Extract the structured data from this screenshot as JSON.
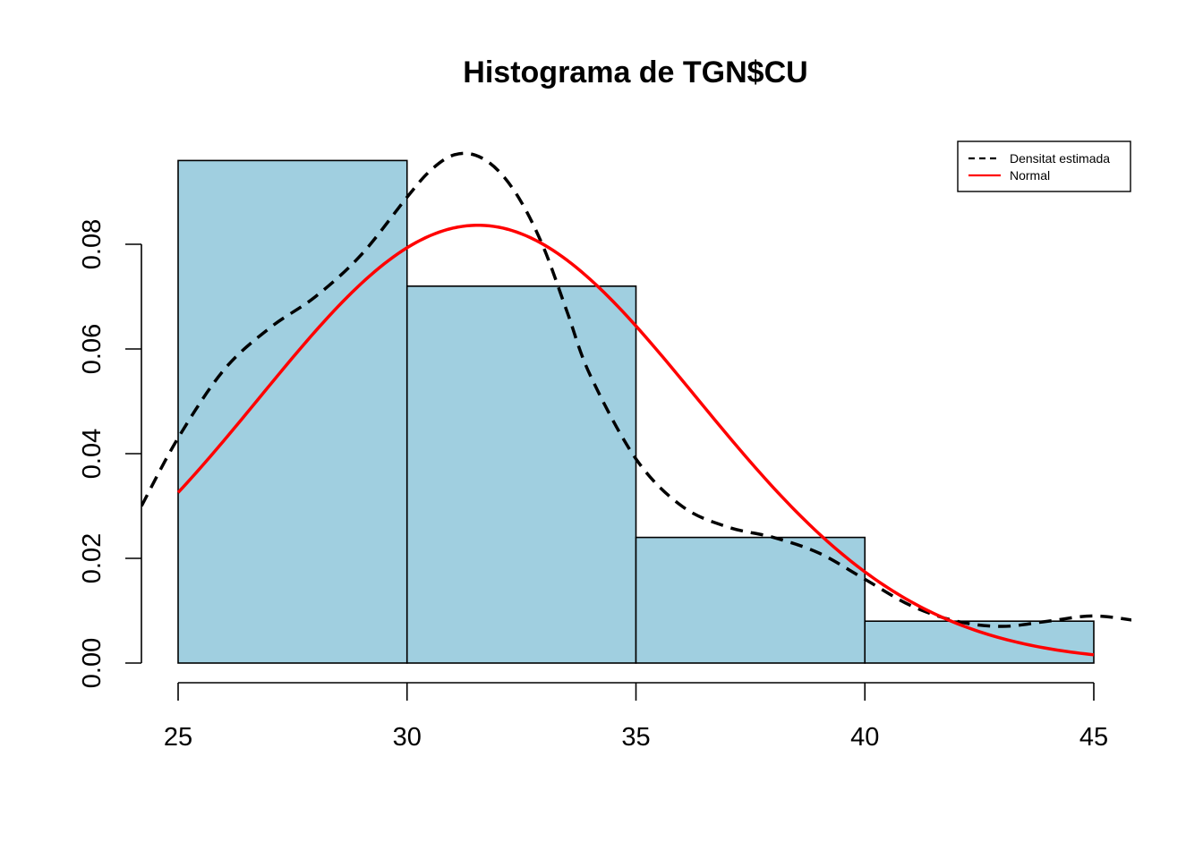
{
  "chart_data": {
    "type": "bar",
    "title": "Histograma de TGN$CU",
    "xlabel": "",
    "ylabel": "",
    "xlim": [
      24.2,
      46
    ],
    "ylim": [
      0,
      0.1
    ],
    "bins": [
      {
        "start": 25,
        "end": 30,
        "density": 0.096
      },
      {
        "start": 30,
        "end": 35,
        "density": 0.072
      },
      {
        "start": 35,
        "end": 40,
        "density": 0.024
      },
      {
        "start": 40,
        "end": 45,
        "density": 0.008
      }
    ],
    "x_ticks": [
      "25",
      "30",
      "35",
      "40",
      "45"
    ],
    "y_ticks": [
      "0.00",
      "0.02",
      "0.04",
      "0.06",
      "0.08"
    ],
    "bar_color": "#a0cfe0",
    "series": [
      {
        "name": "Densitat estimada",
        "style": "dashed",
        "color": "#000000",
        "x": [
          24.2,
          25,
          26,
          27,
          28,
          29,
          30,
          30.5,
          31,
          31.5,
          32,
          32.5,
          33,
          33.5,
          34,
          35,
          36,
          37,
          38,
          39,
          40,
          41,
          42,
          43,
          44,
          45,
          46
        ],
        "y": [
          0.03,
          0.043,
          0.056,
          0.064,
          0.07,
          0.078,
          0.089,
          0.094,
          0.097,
          0.097,
          0.094,
          0.088,
          0.079,
          0.067,
          0.055,
          0.039,
          0.03,
          0.026,
          0.024,
          0.021,
          0.016,
          0.011,
          0.008,
          0.007,
          0.008,
          0.009,
          0.008
        ]
      },
      {
        "name": "Normal",
        "style": "solid",
        "color": "#ff0000",
        "mean": 31.55,
        "sd": 4.77,
        "x_range": [
          25,
          45
        ]
      }
    ],
    "legend": {
      "position": "top-right",
      "entries": [
        "Densitat estimada",
        "Normal"
      ]
    }
  }
}
